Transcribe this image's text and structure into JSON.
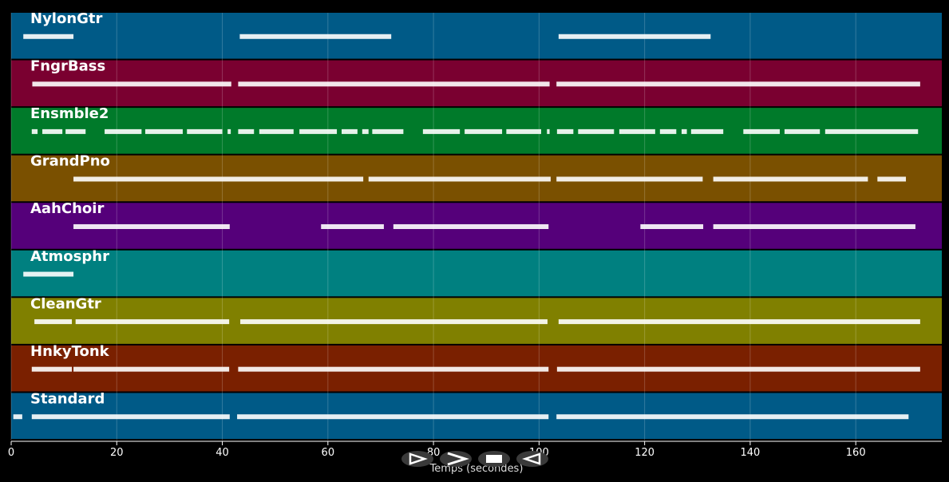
{
  "chart_data": {
    "type": "pianoroll",
    "xlabel": "Temps (secondes)",
    "xlim": [
      0,
      176.3
    ],
    "xticks": [
      0,
      20,
      40,
      60,
      80,
      100,
      120,
      140,
      160
    ],
    "grid": true,
    "tracks": [
      {
        "name": "NylonGtr",
        "color": "#005a87",
        "notes": [
          [
            2.3,
            11.8
          ],
          [
            43.3,
            72
          ],
          [
            103.7,
            132.5
          ]
        ]
      },
      {
        "name": "FngrBass",
        "color": "#7a0030",
        "notes": [
          [
            4,
            41.7
          ],
          [
            43,
            102
          ],
          [
            103.3,
            172.2
          ]
        ]
      },
      {
        "name": "Ensmble2",
        "color": "#007a2a",
        "notes": [
          [
            3.9,
            5
          ],
          [
            5.9,
            9.7
          ],
          [
            10.3,
            14.1
          ],
          [
            17.7,
            24.7
          ],
          [
            25.4,
            32.5
          ],
          [
            33.3,
            40
          ],
          [
            41,
            41.6
          ],
          [
            43,
            46
          ],
          [
            47,
            53.5
          ],
          [
            54.6,
            61.7
          ],
          [
            62.6,
            65.6
          ],
          [
            66.5,
            67.7
          ],
          [
            68.4,
            74.3
          ],
          [
            78,
            85
          ],
          [
            85.9,
            93
          ],
          [
            93.8,
            100.4
          ],
          [
            101.5,
            102
          ],
          [
            103.4,
            106.5
          ],
          [
            107.4,
            114.2
          ],
          [
            115.2,
            122
          ],
          [
            122.9,
            126
          ],
          [
            127,
            128
          ],
          [
            128.8,
            134.9
          ],
          [
            138.7,
            145.6
          ],
          [
            146.5,
            153.2
          ],
          [
            154.2,
            171.8
          ]
        ]
      },
      {
        "name": "GrandPno",
        "color": "#7a5000",
        "notes": [
          [
            11.8,
            66.7
          ],
          [
            67.7,
            102.2
          ],
          [
            103.3,
            131
          ],
          [
            133,
            162.3
          ],
          [
            164.1,
            169.5
          ]
        ]
      },
      {
        "name": "AahChoir",
        "color": "#55007a",
        "notes": [
          [
            11.8,
            41.4
          ],
          [
            58.7,
            70.6
          ],
          [
            72.4,
            101.8
          ],
          [
            119.2,
            131.1
          ],
          [
            133,
            171.3
          ]
        ]
      },
      {
        "name": "Atmosphr",
        "color": "#008080",
        "notes": [
          [
            2.3,
            11.8
          ]
        ]
      },
      {
        "name": "CleanGtr",
        "color": "#808000",
        "notes": [
          [
            4.4,
            11.5
          ],
          [
            12.2,
            41.3
          ],
          [
            43.4,
            101.6
          ],
          [
            103.7,
            172.2
          ]
        ]
      },
      {
        "name": "HnkyTonk",
        "color": "#7a2000",
        "notes": [
          [
            3.9,
            11.5
          ],
          [
            11.8,
            41.3
          ],
          [
            43,
            101.8
          ],
          [
            103.4,
            172.2
          ]
        ]
      },
      {
        "name": "Standard",
        "color": "#005a87",
        "notes": [
          [
            0.4,
            2.1
          ],
          [
            3.9,
            41.4
          ],
          [
            42.8,
            101.8
          ],
          [
            103.3,
            170
          ]
        ]
      }
    ]
  }
}
